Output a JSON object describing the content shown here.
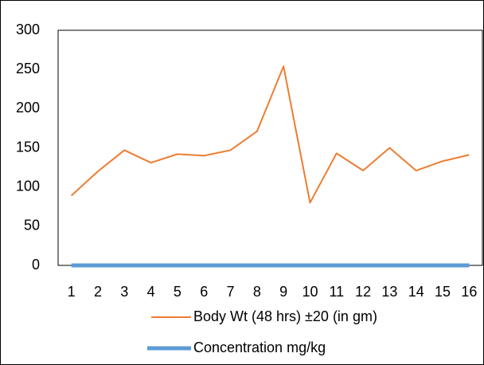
{
  "chart_data": {
    "type": "line",
    "categories": [
      "1",
      "2",
      "3",
      "4",
      "5",
      "6",
      "7",
      "8",
      "9",
      "10",
      "11",
      "12",
      "13",
      "14",
      "15",
      "16"
    ],
    "series": [
      {
        "name": "Body Wt (48 hrs) ±20 (in gm)",
        "color": "#ed7d31",
        "values": [
          89,
          120,
          147,
          131,
          142,
          140,
          147,
          171,
          254,
          80,
          143,
          121,
          150,
          121,
          133,
          141
        ]
      },
      {
        "name": "Concentration mg/kg",
        "color": "#5b9bd5",
        "values": [
          0,
          0,
          0,
          0,
          0,
          0,
          0,
          0,
          0,
          0,
          0,
          0,
          0,
          0,
          0,
          0
        ]
      }
    ],
    "ylim": [
      0,
      300
    ],
    "yticks": [
      0,
      50,
      100,
      150,
      200,
      250,
      300
    ],
    "grid": false
  }
}
